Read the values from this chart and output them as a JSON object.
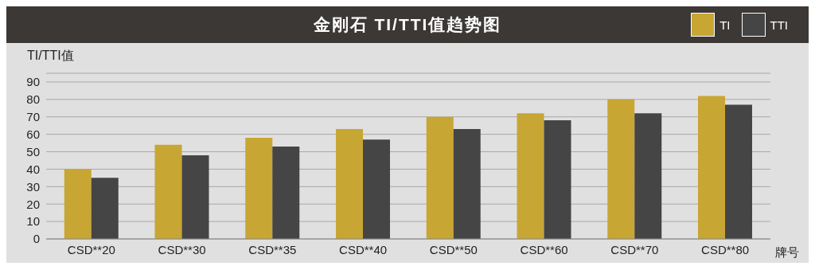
{
  "chart_data": {
    "type": "bar",
    "title": "金刚石 TI/TTI值趋势图",
    "ylabel": "TI/TTI值",
    "xlabel": "牌号",
    "categories": [
      "CSD**20",
      "CSD**30",
      "CSD**35",
      "CSD**40",
      "CSD**50",
      "CSD**60",
      "CSD**70",
      "CSD**80"
    ],
    "series": [
      {
        "name": "TI",
        "color": "#c8a633",
        "values": [
          40,
          54,
          58,
          63,
          70,
          72,
          80,
          82
        ]
      },
      {
        "name": "TTI",
        "color": "#454545",
        "values": [
          35,
          48,
          53,
          57,
          63,
          68,
          72,
          77
        ]
      }
    ],
    "ylim": [
      0,
      95
    ],
    "yticks": [
      0,
      10,
      20,
      30,
      40,
      50,
      60,
      70,
      80,
      90
    ],
    "grid": "y",
    "legend": "top right"
  }
}
